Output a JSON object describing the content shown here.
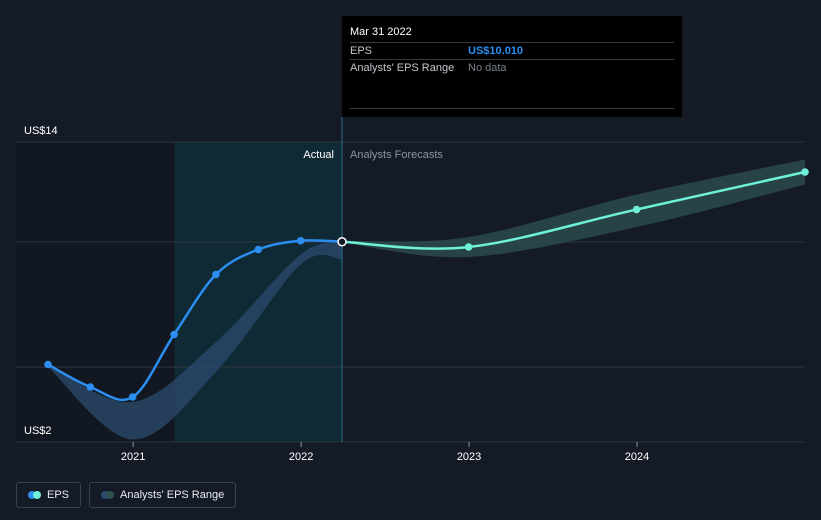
{
  "chart_data": {
    "type": "line",
    "title": "",
    "xlabel": "",
    "ylabel": "",
    "y_axis_labels": [
      "US$14",
      "US$2"
    ],
    "ylim": [
      2,
      14
    ],
    "xlim": [
      "2020-06-30",
      "2024-12-31"
    ],
    "x_tick_labels": [
      "2021",
      "2022",
      "2023",
      "2024"
    ],
    "x_ticks": [
      "2021-01-01",
      "2022-01-01",
      "2023-01-01",
      "2024-01-01"
    ],
    "grid": "horizontal",
    "regions": {
      "actual_label": "Actual",
      "forecast_label": "Analysts Forecasts",
      "highlight_from": "2021-04-01",
      "divider_at": "2022-03-31"
    },
    "series": [
      {
        "name": "EPS",
        "color": "#2b8ef0",
        "points": [
          [
            "2020-06-30",
            5.1
          ],
          [
            "2020-09-30",
            4.2
          ],
          [
            "2020-12-31",
            3.8
          ],
          [
            "2021-03-31",
            6.3
          ],
          [
            "2021-06-30",
            8.7
          ],
          [
            "2021-09-30",
            9.7
          ],
          [
            "2021-12-31",
            10.05
          ],
          [
            "2022-03-31",
            10.01
          ]
        ]
      },
      {
        "name": "EPS forecast",
        "color": "#6ff0d8",
        "points": [
          [
            "2022-03-31",
            10.01
          ],
          [
            "2022-12-31",
            9.8
          ],
          [
            "2023-12-31",
            11.3
          ],
          [
            "2024-12-31",
            12.8
          ]
        ]
      }
    ],
    "bands": [
      {
        "name": "Analysts' EPS Range",
        "color": "#2c4b6e",
        "upper": [
          [
            "2020-06-30",
            5.1
          ],
          [
            "2020-12-31",
            3.6
          ],
          [
            "2021-06-30",
            6.0
          ],
          [
            "2021-12-31",
            9.5
          ],
          [
            "2022-03-31",
            10.0
          ]
        ],
        "lower": [
          [
            "2020-06-30",
            5.0
          ],
          [
            "2020-12-31",
            2.1
          ],
          [
            "2021-06-30",
            4.8
          ],
          [
            "2021-12-31",
            9.1
          ],
          [
            "2022-03-31",
            9.3
          ]
        ]
      },
      {
        "name": "Analysts' EPS Range forecast",
        "color": "#2e5250",
        "upper": [
          [
            "2022-03-31",
            10.04
          ],
          [
            "2022-12-31",
            10.2
          ],
          [
            "2023-12-31",
            11.9
          ],
          [
            "2024-12-31",
            13.3
          ]
        ],
        "lower": [
          [
            "2022-03-31",
            9.98
          ],
          [
            "2022-12-31",
            9.4
          ],
          [
            "2023-12-31",
            10.6
          ],
          [
            "2024-12-31",
            12.3
          ]
        ]
      }
    ]
  },
  "tooltip": {
    "date": "Mar 31 2022",
    "rows": [
      {
        "label": "EPS",
        "value": "US$10.010"
      },
      {
        "label": "Analysts' EPS Range",
        "value": "No data"
      }
    ]
  },
  "legend": [
    {
      "label": "EPS",
      "colors": [
        "#2b8ef0",
        "#6ff0d8"
      ]
    },
    {
      "label": "Analysts' EPS Range",
      "colors": [
        "#2c4b6e",
        "#2e5250"
      ]
    }
  ]
}
